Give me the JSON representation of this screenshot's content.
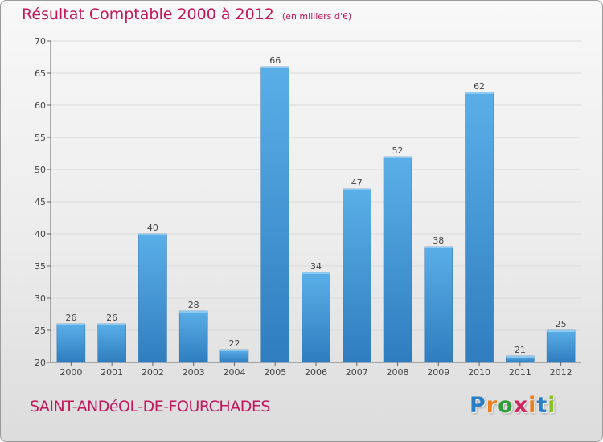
{
  "chart_data": {
    "type": "bar",
    "title": "Résultat Comptable 2000 à 2012",
    "subtitle": "(en milliers d'€)",
    "categories": [
      "2000",
      "2001",
      "2002",
      "2003",
      "2004",
      "2005",
      "2006",
      "2007",
      "2008",
      "2009",
      "2010",
      "2011",
      "2012"
    ],
    "values": [
      26,
      26,
      40,
      28,
      22,
      66,
      34,
      47,
      52,
      38,
      62,
      21,
      25
    ],
    "ylim": [
      20,
      70
    ],
    "yticks": [
      20,
      25,
      30,
      35,
      40,
      45,
      50,
      55,
      60,
      65,
      70
    ],
    "xlabel": "",
    "ylabel": "",
    "grid": true
  },
  "footer": {
    "location": "SAINT-ANDéOL-DE-FOURCHADES",
    "logo": {
      "letters": [
        "P",
        "r",
        "o",
        "x",
        "i",
        "t",
        "i"
      ],
      "colors": [
        "#2a7fc4",
        "#ee7d1a",
        "#2f9e3a",
        "#d4235c",
        "#ee7d1a",
        "#2a7fc4",
        "#8cbf26"
      ]
    }
  },
  "colors": {
    "title": "#c2185b",
    "bar_light": "#5aafe8",
    "bar_dark": "#2f7dbf",
    "grid": "#d9d9d9",
    "axis": "#666666"
  }
}
